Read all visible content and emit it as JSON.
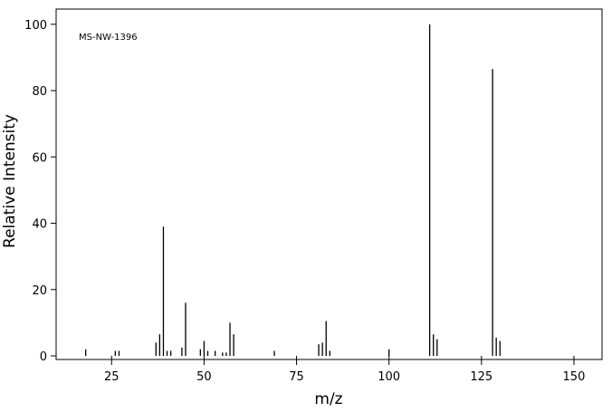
{
  "chart_data": {
    "type": "bar",
    "annotation": "MS-NW-1396",
    "xlabel": "m/z",
    "ylabel": "Relative Intensity",
    "x": [
      18,
      26,
      27,
      37,
      38,
      39,
      40,
      41,
      44,
      45,
      49,
      50,
      51,
      53,
      55,
      56,
      57,
      58,
      69,
      81,
      82,
      83,
      84,
      100,
      111,
      112,
      113,
      128,
      129,
      130
    ],
    "values": [
      2,
      1.5,
      1.5,
      4,
      6.5,
      39,
      1.5,
      1.5,
      2.5,
      16,
      2,
      4.5,
      1.5,
      1.5,
      1,
      1,
      10,
      6.5,
      1.5,
      3.5,
      4,
      10.5,
      1.5,
      2,
      100,
      6.5,
      5,
      86.5,
      5.5,
      4.5
    ],
    "color": "#000000",
    "xlim": [
      10,
      157.6
    ],
    "ylim": [
      0,
      104.6
    ],
    "xticks": [
      25,
      50,
      75,
      100,
      125,
      150
    ],
    "yticks": [
      0,
      20,
      40,
      60,
      80,
      100
    ]
  }
}
